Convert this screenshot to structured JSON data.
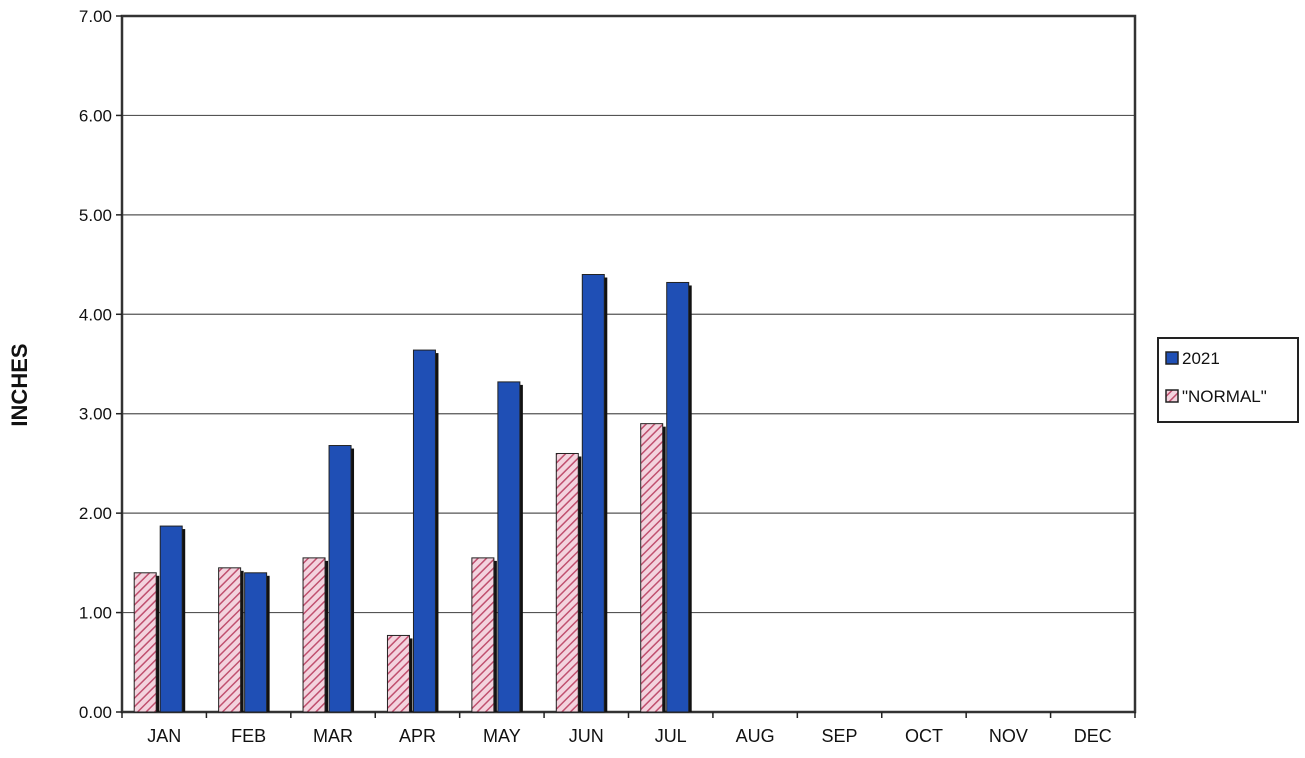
{
  "chart_data": {
    "type": "bar",
    "categories": [
      "JAN",
      "FEB",
      "MAR",
      "APR",
      "MAY",
      "JUN",
      "JUL",
      "AUG",
      "SEP",
      "OCT",
      "NOV",
      "DEC"
    ],
    "series": [
      {
        "name": "\"NORMAL\"",
        "values": [
          1.4,
          1.45,
          1.55,
          0.77,
          1.55,
          2.6,
          2.9,
          null,
          null,
          null,
          null,
          null
        ],
        "color": "#d88aa6",
        "pattern": "hatched"
      },
      {
        "name": "2021",
        "values": [
          1.87,
          1.4,
          2.68,
          3.64,
          3.32,
          4.4,
          4.32,
          null,
          null,
          null,
          null,
          null
        ],
        "color": "#1f4fb5"
      }
    ],
    "ylabel": "INCHES",
    "xlabel": "",
    "title": "",
    "ylim": [
      0,
      7
    ],
    "yticks": [
      "0.00",
      "1.00",
      "2.00",
      "3.00",
      "4.00",
      "5.00",
      "6.00",
      "7.00"
    ],
    "grid": true,
    "legend": {
      "placement": "right",
      "entries": [
        "2021",
        "\"NORMAL\""
      ]
    }
  }
}
